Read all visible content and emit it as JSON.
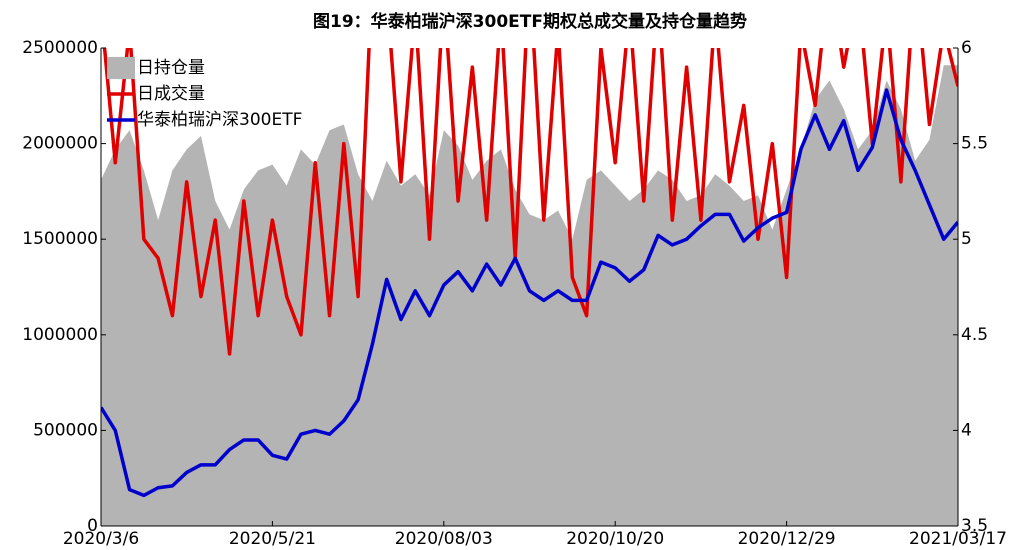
{
  "chart_data": {
    "type": "line",
    "title": "图19：华泰柏瑞沪深300ETF期权总成交量及持仓量趋势",
    "categories": [
      "2020/3/6",
      null,
      null,
      null,
      null,
      null,
      null,
      null,
      null,
      null,
      null,
      null,
      "2020/5/21",
      null,
      null,
      null,
      null,
      null,
      null,
      null,
      null,
      null,
      null,
      null,
      "2020/08/03",
      null,
      null,
      null,
      null,
      null,
      null,
      null,
      null,
      null,
      null,
      null,
      "2020/10/20",
      null,
      null,
      null,
      null,
      null,
      null,
      null,
      null,
      null,
      null,
      null,
      "2020/12/29",
      null,
      null,
      null,
      null,
      null,
      null,
      null,
      null,
      null,
      null,
      null,
      "2021/03/17"
    ],
    "series": [
      {
        "name": "日持仓量",
        "type": "area",
        "color": "#b4b4b4",
        "values": [
          1810000,
          1970000,
          2070000,
          1860000,
          1600000,
          1860000,
          1970000,
          2040000,
          1700000,
          1550000,
          1760000,
          1860000,
          1890000,
          1780000,
          1970000,
          1890000,
          2070000,
          2100000,
          1840000,
          1700000,
          1910000,
          1780000,
          1840000,
          1730000,
          2070000,
          1990000,
          1810000,
          1910000,
          1970000,
          1760000,
          1630000,
          1600000,
          1650000,
          1500000,
          1810000,
          1860000,
          1780000,
          1700000,
          1760000,
          1860000,
          1810000,
          1700000,
          1730000,
          1840000,
          1780000,
          1700000,
          1730000,
          1550000,
          1760000,
          1970000,
          2230000,
          2330000,
          2180000,
          1970000,
          2070000,
          2330000,
          2180000,
          1910000,
          2020000,
          2410000,
          2410000
        ]
      },
      {
        "name": "日成交量",
        "type": "line",
        "color": "#e00000",
        "values": [
          2700000,
          1900000,
          2600000,
          1500000,
          1400000,
          1100000,
          1800000,
          1200000,
          1600000,
          900000,
          1700000,
          1100000,
          1600000,
          1200000,
          1000000,
          1900000,
          1100000,
          2000000,
          1200000,
          2900000,
          2800000,
          1800000,
          2700000,
          1500000,
          2800000,
          1700000,
          2400000,
          1600000,
          2700000,
          1400000,
          2900000,
          1600000,
          2600000,
          1300000,
          1100000,
          2500000,
          1900000,
          2700000,
          1700000,
          2800000,
          1600000,
          2400000,
          1600000,
          2700000,
          1800000,
          2200000,
          1500000,
          2000000,
          1300000,
          2600000,
          2200000,
          2900000,
          2400000,
          2800000,
          2000000,
          2700000,
          1800000,
          2900000,
          2100000,
          2600000,
          2300000
        ]
      },
      {
        "name": "华泰柏瑞沪深300ETF",
        "type": "line",
        "axis": "y2",
        "color": "#0000cc",
        "values": [
          4.12,
          4.0,
          3.69,
          3.66,
          3.7,
          3.71,
          3.78,
          3.82,
          3.82,
          3.9,
          3.95,
          3.95,
          3.87,
          3.85,
          3.98,
          4.0,
          3.98,
          4.05,
          4.16,
          4.45,
          4.79,
          4.58,
          4.73,
          4.6,
          4.76,
          4.83,
          4.73,
          4.87,
          4.76,
          4.9,
          4.73,
          4.68,
          4.73,
          4.68,
          4.68,
          4.88,
          4.85,
          4.78,
          4.84,
          5.02,
          4.97,
          5.0,
          5.07,
          5.13,
          5.13,
          4.99,
          5.06,
          5.11,
          5.14,
          5.47,
          5.65,
          5.47,
          5.62,
          5.36,
          5.48,
          5.78,
          5.52,
          5.36,
          5.18,
          5.0,
          5.09
        ]
      }
    ],
    "ylim": [
      0,
      2500000
    ],
    "yticks": [
      0,
      500000,
      1000000,
      1500000,
      2000000,
      2500000
    ],
    "y2lim": [
      3.5,
      6
    ],
    "y2ticks": [
      3.5,
      4,
      4.5,
      5,
      5.5,
      6
    ],
    "legend": "upper-left"
  }
}
